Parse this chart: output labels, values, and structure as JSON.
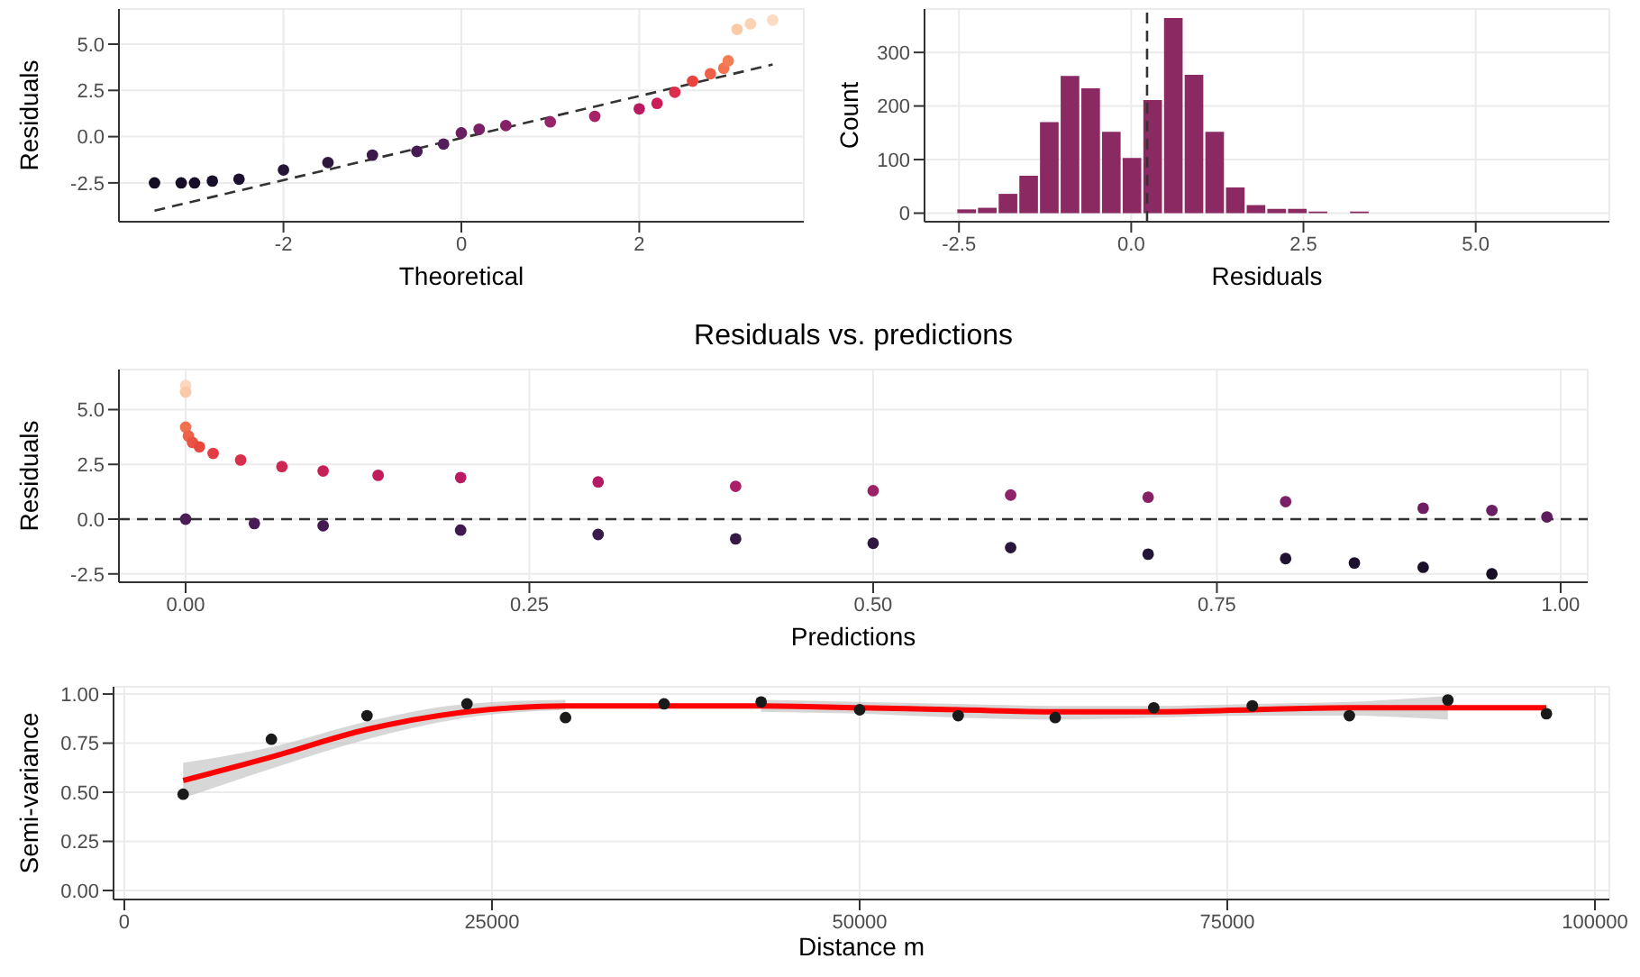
{
  "chart_data": [
    {
      "type": "scatter",
      "xlabel": "Theoretical",
      "ylabel": "Residuals",
      "xlim": [
        -3.85,
        3.85
      ],
      "ylim": [
        -4.6,
        6.9
      ],
      "xticks": [
        -2,
        0,
        2
      ],
      "yticks": [
        {
          "value": -2.5,
          "label": "-2.5"
        },
        {
          "value": 0,
          "label": "0.0"
        },
        {
          "value": 2.5,
          "label": "2.5"
        },
        {
          "value": 5,
          "label": "5.0"
        }
      ],
      "grid": true,
      "series": [
        {
          "type": "scatter",
          "marker": "circle",
          "x": [
            -3.45,
            -3.15,
            -3.0,
            -2.8,
            -2.5,
            -2.0,
            -1.5,
            -1.0,
            -0.5,
            -0.2,
            0,
            0.2,
            0.5,
            1.0,
            1.5,
            2.0,
            2.2,
            2.4,
            2.6,
            2.8,
            2.95,
            3.0,
            3.1,
            3.25,
            3.5
          ],
          "values": [
            -2.5,
            -2.5,
            -2.5,
            -2.4,
            -2.3,
            -1.8,
            -1.4,
            -1.0,
            -0.8,
            -0.4,
            0.2,
            0.4,
            0.6,
            0.8,
            1.1,
            1.5,
            1.8,
            2.4,
            3.0,
            3.4,
            3.7,
            4.1,
            5.8,
            6.1,
            6.3
          ],
          "colors": [
            "#140d24",
            "#150e26",
            "#170f28",
            "#18102a",
            "#1c112e",
            "#251536",
            "#2e183e",
            "#3a1a48",
            "#471c52",
            "#541e5a",
            "#6a1f63",
            "#7a2066",
            "#852267",
            "#952468",
            "#a72268",
            "#bb1a63",
            "#cc1d58",
            "#dc2e4a",
            "#e8433e",
            "#ef5f47",
            "#f37350",
            "#f47d55",
            "#f9c9a8",
            "#fad2b4",
            "#fbdbc2"
          ]
        },
        {
          "type": "line",
          "line_style": "dashed",
          "color": "#333333",
          "x": [
            -3.45,
            3.5
          ],
          "values": [
            -4.0,
            3.9
          ]
        }
      ]
    },
    {
      "type": "histogram",
      "xlabel": "Residuals",
      "ylabel": "Count",
      "xlim": [
        -3.0,
        6.94
      ],
      "ylim": [
        -16,
        381
      ],
      "xticks": [
        -2.5,
        {
          "value": 0,
          "label": "0.0"
        },
        2.5,
        {
          "value": 5,
          "label": "5.0"
        }
      ],
      "yticks": [
        0,
        100,
        200,
        300
      ],
      "grid": true,
      "color": "#8b2962",
      "bins": [
        -2.55,
        -2.25,
        -1.95,
        -1.65,
        -1.35,
        -1.05,
        -0.75,
        -0.45,
        -0.15,
        0.15,
        0.45,
        0.75,
        1.05,
        1.35,
        1.65,
        1.95,
        2.25,
        2.55,
        2.85,
        3.15,
        3.45
      ],
      "values": [
        7,
        10,
        36,
        70,
        170,
        256,
        233,
        152,
        103,
        211,
        364,
        258,
        152,
        48,
        15,
        8,
        8,
        3,
        0,
        3
      ],
      "ref_lines": [
        {
          "axis": "x",
          "value": 0.23,
          "color": "#333333",
          "line_style": "dashed"
        }
      ]
    },
    {
      "type": "scatter",
      "title": "Residuals vs. predictions",
      "xlabel": "Predictions",
      "ylabel": "Residuals",
      "xlim": [
        -0.0485,
        1.0197
      ],
      "ylim": [
        -2.88,
        6.83
      ],
      "xticks": [
        {
          "value": 0,
          "label": "0.00"
        },
        {
          "value": 0.25,
          "label": "0.25"
        },
        {
          "value": 0.5,
          "label": "0.50"
        },
        {
          "value": 0.75,
          "label": "0.75"
        },
        {
          "value": 1,
          "label": "1.00"
        }
      ],
      "yticks": [
        {
          "value": -2.5,
          "label": "-2.5"
        },
        {
          "value": 0,
          "label": "0.0"
        },
        {
          "value": 2.5,
          "label": "2.5"
        },
        {
          "value": 5,
          "label": "5.0"
        }
      ],
      "grid": true,
      "series": [
        {
          "type": "scatter",
          "marker": "circle",
          "x": [
            0,
            0,
            0,
            0.002,
            0.005,
            0.01,
            0.02,
            0.04,
            0.07,
            0.1,
            0.14,
            0.2,
            0.3,
            0.4,
            0.5,
            0.6,
            0.7,
            0.8,
            0.9,
            0.95,
            0.99,
            0,
            0.05,
            0.1,
            0.2,
            0.3,
            0.4,
            0.5,
            0.6,
            0.7,
            0.8,
            0.85,
            0.9,
            0.95
          ],
          "values": [
            6.1,
            5.8,
            4.2,
            3.8,
            3.5,
            3.3,
            3.0,
            2.7,
            2.4,
            2.2,
            2.0,
            1.9,
            1.7,
            1.5,
            1.3,
            1.1,
            1.0,
            0.8,
            0.5,
            0.4,
            0.1,
            0,
            -0.2,
            -0.3,
            -0.5,
            -0.7,
            -0.9,
            -1.1,
            -1.3,
            -1.6,
            -1.8,
            -2.0,
            -2.2,
            -2.5
          ],
          "colors": [
            "#fbd8bd",
            "#f9c9a8",
            "#f07050",
            "#ee6249",
            "#ea5343",
            "#e8473f",
            "#e23c44",
            "#d8304b",
            "#cf2552",
            "#c61f58",
            "#bf1c5d",
            "#ba1b62",
            "#b31c65",
            "#aa1f67",
            "#9c2268",
            "#8f2468",
            "#852267",
            "#7a2066",
            "#6e1f64",
            "#681f63",
            "#5e1e5e",
            "#4a1d57",
            "#471c55",
            "#431b52",
            "#3e1a4e",
            "#391a4a",
            "#341945",
            "#2f1840",
            "#2a163b",
            "#251536",
            "#201331",
            "#1d112e",
            "#1a102b",
            "#160e27"
          ]
        },
        {
          "type": "line",
          "line_style": "dashed",
          "color": "#333333",
          "x": [
            -0.0485,
            1.0197
          ],
          "values": [
            0,
            0
          ]
        }
      ]
    },
    {
      "type": "scatter",
      "xlabel": "Distance m",
      "ylabel": "Semi-variance",
      "xlim": [
        -735,
        100980
      ],
      "ylim": [
        -0.046,
        1.037
      ],
      "xticks": [
        0,
        25000,
        50000,
        75000,
        100000
      ],
      "yticks": [
        {
          "value": 0,
          "label": "0.00"
        },
        {
          "value": 0.25,
          "label": "0.25"
        },
        {
          "value": 0.5,
          "label": "0.50"
        },
        {
          "value": 0.75,
          "label": "0.75"
        },
        {
          "value": 1,
          "label": "1.00"
        }
      ],
      "grid": true,
      "x": [
        4000,
        10000,
        16500,
        23300,
        30000,
        36700,
        43300,
        50000,
        56700,
        63300,
        70000,
        76700,
        83300,
        90000,
        96700
      ],
      "series": [
        {
          "type": "scatter",
          "marker": "circle",
          "color": "#1a1a1a",
          "values": [
            0.49,
            0.77,
            0.89,
            0.95,
            0.88,
            0.95,
            0.96,
            0.92,
            0.89,
            0.88,
            0.93,
            0.94,
            0.89,
            0.97,
            0.9
          ]
        },
        {
          "type": "line",
          "color": "#ff0000",
          "values": [
            0.56,
            0.68,
            0.82,
            0.91,
            0.94,
            0.94,
            0.94,
            0.93,
            0.92,
            0.91,
            0.91,
            0.92,
            0.93,
            0.93,
            0.93
          ],
          "lower": [
            0.47,
            0.62,
            0.77,
            0.88,
            0.92,
            null,
            0.91,
            0.9,
            0.88,
            0.87,
            0.88,
            0.89,
            0.89,
            0.87,
            null
          ],
          "upper": [
            0.65,
            0.73,
            0.86,
            0.95,
            0.97,
            null,
            0.97,
            0.96,
            0.95,
            0.94,
            0.94,
            0.95,
            0.96,
            0.99,
            null
          ]
        }
      ]
    }
  ]
}
